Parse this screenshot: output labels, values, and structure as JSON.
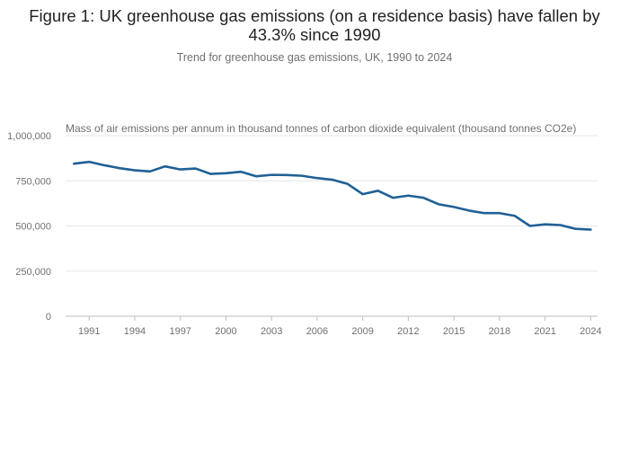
{
  "title": "Figure 1: UK greenhouse gas emissions (on a residence basis) have fallen by 43.3% since 1990",
  "subtitle": "Trend for greenhouse gas emissions, UK, 1990 to 2024",
  "colors": {
    "line": "#206095",
    "grid": "#e6e6e6",
    "axis": "#bdbdbd",
    "text": "#707071"
  },
  "chart_data": {
    "type": "line",
    "title": "Figure 1: UK greenhouse gas emissions (on a residence basis) have fallen by 43.3% since 1990",
    "subtitle": "Trend for greenhouse gas emissions, UK, 1990 to 2024",
    "ylabel": "Mass of air emissions per annum in thousand tonnes of carbon dioxide equivalent (thousand tonnes CO2e)",
    "xlabel": "",
    "ylim": [
      0,
      1000000
    ],
    "xlim": [
      1990,
      2024
    ],
    "yticks": [
      0,
      250000,
      500000,
      750000,
      1000000
    ],
    "ytick_labels": [
      "0",
      "250,000",
      "500,000",
      "750,000",
      "1,000,000"
    ],
    "xticks": [
      1991,
      1994,
      1997,
      2000,
      2003,
      2006,
      2009,
      2012,
      2015,
      2018,
      2021,
      2024
    ],
    "xtick_labels": [
      "1991",
      "1994",
      "1997",
      "2000",
      "2003",
      "2006",
      "2009",
      "2012",
      "2015",
      "2018",
      "2021",
      "2024"
    ],
    "grid": true,
    "series": [
      {
        "name": "Greenhouse gas emissions",
        "x": [
          1990,
          1991,
          1992,
          1993,
          1994,
          1995,
          1996,
          1997,
          1998,
          1999,
          2000,
          2001,
          2002,
          2003,
          2004,
          2005,
          2006,
          2007,
          2008,
          2009,
          2010,
          2011,
          2012,
          2013,
          2014,
          2015,
          2016,
          2017,
          2018,
          2019,
          2020,
          2021,
          2022,
          2023,
          2024
        ],
        "values": [
          845000,
          855000,
          836000,
          820000,
          808000,
          802000,
          830000,
          813000,
          818000,
          788000,
          792000,
          800000,
          775000,
          783000,
          782000,
          778000,
          765000,
          756000,
          733000,
          676000,
          695000,
          656000,
          668000,
          656000,
          620000,
          605000,
          585000,
          571000,
          571000,
          556000,
          500000,
          509000,
          505000,
          484000,
          480000
        ]
      }
    ]
  }
}
